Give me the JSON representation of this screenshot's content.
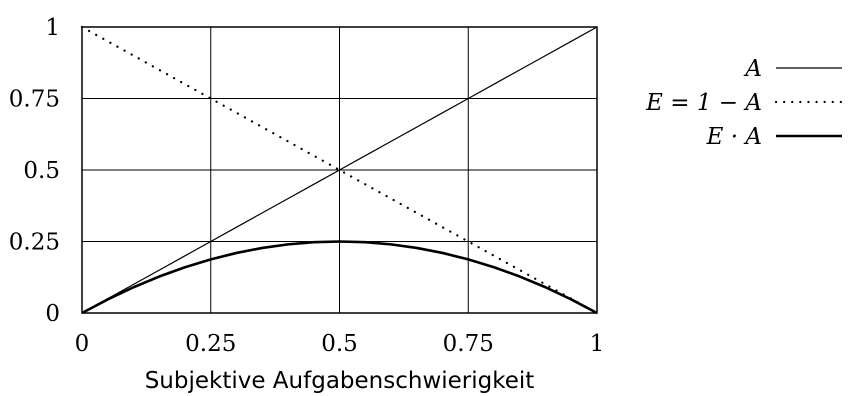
{
  "chart_data": {
    "type": "line",
    "xlabel": "Subjektive Aufgabenschwierigkeit",
    "ylabel": "",
    "xlim": [
      0,
      1
    ],
    "ylim": [
      0,
      1
    ],
    "grid": true,
    "legend_position": "right",
    "x_ticks": [
      "0",
      "0.25",
      "0.5",
      "0.75",
      "1"
    ],
    "y_ticks": [
      "0",
      "0.25",
      "0.5",
      "0.75",
      "1"
    ],
    "x": [
      0,
      0.05,
      0.1,
      0.15,
      0.2,
      0.25,
      0.3,
      0.35,
      0.4,
      0.45,
      0.5,
      0.55,
      0.6,
      0.65,
      0.7,
      0.75,
      0.8,
      0.85,
      0.9,
      0.95,
      1
    ],
    "series": [
      {
        "name": "A",
        "style": "thin-solid",
        "values": [
          0,
          0.05,
          0.1,
          0.15,
          0.2,
          0.25,
          0.3,
          0.35,
          0.4,
          0.45,
          0.5,
          0.55,
          0.6,
          0.65,
          0.7,
          0.75,
          0.8,
          0.85,
          0.9,
          0.95,
          1
        ]
      },
      {
        "name": "E = 1 − A",
        "style": "dotted",
        "values": [
          1,
          0.95,
          0.9,
          0.85,
          0.8,
          0.75,
          0.7,
          0.65,
          0.6,
          0.55,
          0.5,
          0.45,
          0.4,
          0.35,
          0.3,
          0.25,
          0.2,
          0.15,
          0.1,
          0.05,
          0
        ]
      },
      {
        "name": "E · A",
        "style": "thick-solid",
        "values": [
          0,
          0.0475,
          0.09,
          0.1275,
          0.16,
          0.1875,
          0.21,
          0.2275,
          0.24,
          0.2475,
          0.25,
          0.2475,
          0.24,
          0.2275,
          0.21,
          0.1875,
          0.16,
          0.1275,
          0.09,
          0.0475,
          0
        ]
      }
    ]
  }
}
